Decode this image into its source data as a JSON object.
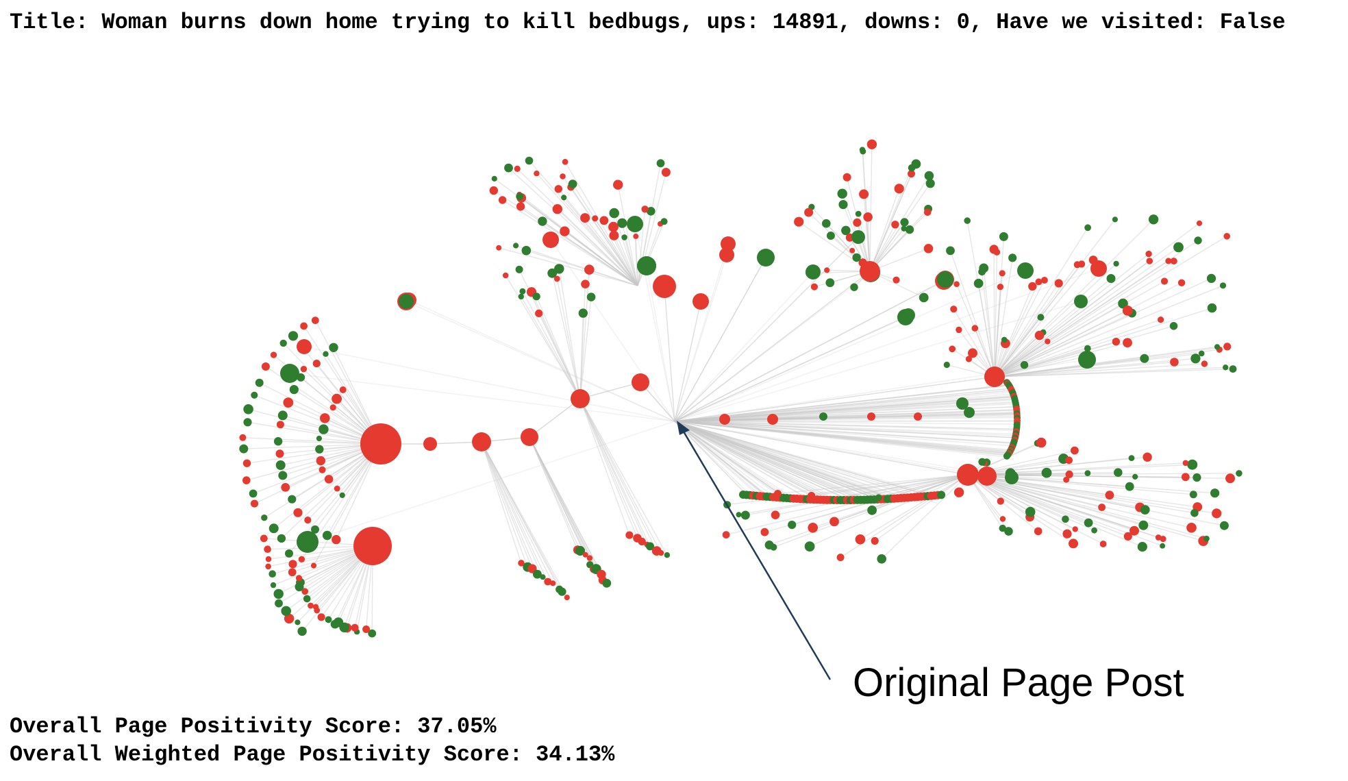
{
  "post": {
    "title_label": "Title:",
    "title": "Woman burns down home trying to kill bedbugs",
    "ups_label": "ups:",
    "ups": "14891",
    "downs_label": "downs:",
    "downs": "0",
    "visited_label": "Have we visited:",
    "visited": "False"
  },
  "annotation": {
    "label": "Original Page Post"
  },
  "scores": {
    "positivity_label": "Overall Page Positivity Score:",
    "positivity_value": "37.05%",
    "weighted_label": "Overall Weighted Page Positivity Score:",
    "weighted_value": "34.13%"
  },
  "colors": {
    "negative": "#e53a2f",
    "positive": "#2f7d2f",
    "edge": "#c8c8c8",
    "arrow": "#1f3b57"
  }
}
